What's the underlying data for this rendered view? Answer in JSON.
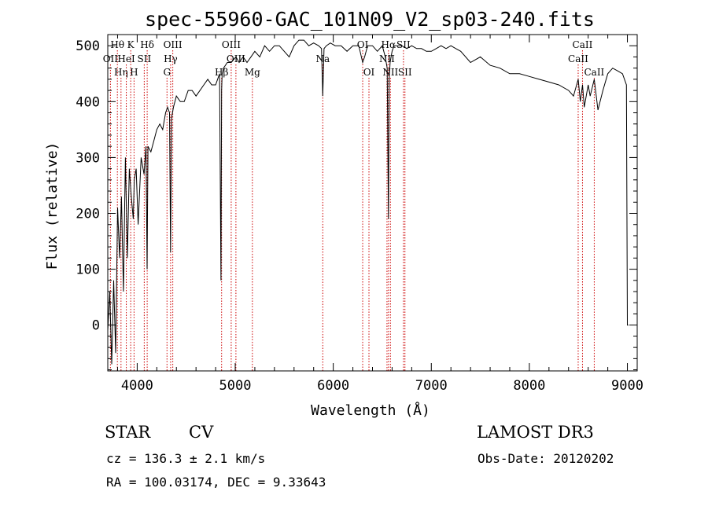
{
  "chart_data": {
    "type": "line",
    "title": "spec-55960-GAC_101N09_V2_sp03-240.fits",
    "xlabel": "Wavelength (Å)",
    "ylabel": "Flux (relative)",
    "xlim": [
      3700,
      9100
    ],
    "ylim": [
      -82,
      520
    ],
    "xticks": [
      4000,
      5000,
      6000,
      7000,
      8000,
      9000
    ],
    "yticks": [
      0,
      100,
      200,
      300,
      400,
      500
    ],
    "grid": false,
    "series": [
      {
        "name": "spectrum",
        "x": [
          3700,
          3720,
          3740,
          3760,
          3780,
          3800,
          3820,
          3840,
          3860,
          3880,
          3900,
          3920,
          3940,
          3960,
          3970,
          3990,
          4010,
          4040,
          4070,
          4090,
          4101,
          4110,
          4140,
          4170,
          4200,
          4230,
          4260,
          4290,
          4310,
          4330,
          4340,
          4350,
          4370,
          4400,
          4440,
          4480,
          4520,
          4560,
          4600,
          4640,
          4680,
          4720,
          4760,
          4800,
          4840,
          4855,
          4861,
          4867,
          4880,
          4920,
          4960,
          5007,
          5040,
          5080,
          5120,
          5160,
          5200,
          5250,
          5300,
          5350,
          5400,
          5450,
          5500,
          5550,
          5600,
          5650,
          5700,
          5750,
          5800,
          5850,
          5880,
          5893,
          5906,
          5930,
          5970,
          6020,
          6080,
          6140,
          6200,
          6260,
          6300,
          6320,
          6350,
          6400,
          6450,
          6500,
          6530,
          6550,
          6563,
          6570,
          6580,
          6600,
          6620,
          6650,
          6700,
          6750,
          6800,
          6850,
          6900,
          6950,
          7000,
          7050,
          7100,
          7150,
          7200,
          7250,
          7300,
          7400,
          7500,
          7600,
          7700,
          7800,
          7900,
          8000,
          8100,
          8200,
          8300,
          8400,
          8450,
          8498,
          8520,
          8542,
          8560,
          8600,
          8620,
          8662,
          8700,
          8750,
          8800,
          8850,
          8900,
          8950,
          8990,
          9000,
          9010
        ],
        "values": [
          -10,
          60,
          -70,
          80,
          -50,
          210,
          120,
          230,
          60,
          300,
          120,
          280,
          230,
          190,
          260,
          280,
          180,
          300,
          270,
          320,
          100,
          320,
          310,
          330,
          350,
          360,
          350,
          380,
          390,
          380,
          130,
          370,
          390,
          410,
          400,
          400,
          420,
          420,
          410,
          420,
          430,
          440,
          430,
          430,
          450,
          80,
          420,
          450,
          460,
          470,
          470,
          480,
          470,
          480,
          470,
          480,
          490,
          480,
          500,
          490,
          500,
          500,
          490,
          480,
          500,
          510,
          510,
          500,
          505,
          500,
          495,
          410,
          495,
          500,
          505,
          500,
          500,
          490,
          500,
          500,
          470,
          480,
          500,
          500,
          490,
          500,
          480,
          460,
          190,
          440,
          470,
          490,
          500,
          500,
          500,
          495,
          500,
          495,
          495,
          490,
          490,
          495,
          500,
          495,
          500,
          495,
          490,
          470,
          480,
          465,
          460,
          450,
          450,
          445,
          440,
          435,
          430,
          420,
          410,
          440,
          400,
          430,
          390,
          430,
          410,
          440,
          385,
          420,
          450,
          460,
          455,
          450,
          430,
          0,
          0
        ]
      }
    ],
    "lines": [
      {
        "label": "OII",
        "row": 1,
        "x": 3727
      },
      {
        "label": "Hθ",
        "row": 0,
        "x": 3798
      },
      {
        "label": "Hη",
        "row": 2,
        "x": 3835
      },
      {
        "label": "HeI",
        "row": 1,
        "x": 3889
      },
      {
        "label": "K",
        "row": 0,
        "x": 3934
      },
      {
        "label": "H",
        "row": 2,
        "x": 3968
      },
      {
        "label": "SII",
        "row": 1,
        "x": 4072
      },
      {
        "label": "Hδ",
        "row": 0,
        "x": 4102
      },
      {
        "label": "G",
        "row": 2,
        "x": 4304
      },
      {
        "label": "Hγ",
        "row": 1,
        "x": 4341
      },
      {
        "label": "OIII",
        "row": 0,
        "x": 4363
      },
      {
        "label": "Hβ",
        "row": 2,
        "x": 4861
      },
      {
        "label": "OIII",
        "row": 0,
        "x": 4959
      },
      {
        "label": "OIII",
        "row": 1,
        "x": 5007
      },
      {
        "label": "Mg",
        "row": 2,
        "x": 5175
      },
      {
        "label": "Na",
        "row": 1,
        "x": 5893
      },
      {
        "label": "OI",
        "row": 0,
        "x": 6300
      },
      {
        "label": "OI",
        "row": 2,
        "x": 6364
      },
      {
        "label": "NII",
        "row": 1,
        "x": 6548
      },
      {
        "label": "Hα",
        "row": 0,
        "x": 6563
      },
      {
        "label": "NII",
        "row": 2,
        "x": 6583
      },
      {
        "label": "SII",
        "row": 0,
        "x": 6716
      },
      {
        "label": "SII",
        "row": 2,
        "x": 6731
      },
      {
        "label": "CaII",
        "row": 1,
        "x": 8498
      },
      {
        "label": "CaII",
        "row": 0,
        "x": 8542
      },
      {
        "label": "CaII",
        "row": 2,
        "x": 8662
      }
    ]
  },
  "info": {
    "class_label": "STAR",
    "subclass_label": "CV",
    "redshift_text": "cz = 136.3 ± 2.1 km/s",
    "coords_text": "RA = 100.03174, DEC =   9.33643",
    "survey_label": "LAMOST DR3",
    "obs_date_text": "Obs-Date: 20120202"
  },
  "colors": {
    "spectrum": "#000000",
    "line_marker": "#cc0000"
  }
}
